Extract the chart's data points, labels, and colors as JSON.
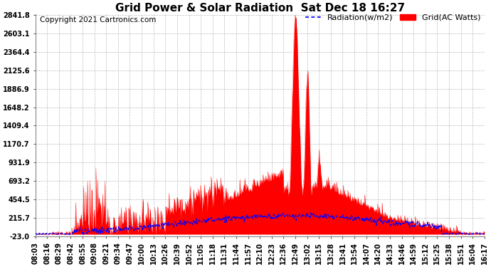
{
  "title": "Grid Power & Solar Radiation  Sat Dec 18 16:27",
  "copyright": "Copyright 2021 Cartronics.com",
  "legend_radiation": "Radiation(w/m2)",
  "legend_grid": "Grid(AC Watts)",
  "legend_radiation_color": "blue",
  "legend_grid_color": "red",
  "ymin": -23.0,
  "ymax": 2841.8,
  "yticks": [
    2841.8,
    2603.1,
    2364.4,
    2125.6,
    1886.9,
    1648.2,
    1409.4,
    1170.7,
    931.9,
    693.2,
    454.5,
    215.7,
    -23.0
  ],
  "xtick_labels": [
    "08:03",
    "08:16",
    "08:29",
    "08:42",
    "08:55",
    "09:08",
    "09:21",
    "09:34",
    "09:47",
    "10:00",
    "10:13",
    "10:26",
    "10:39",
    "10:52",
    "11:05",
    "11:18",
    "11:31",
    "11:44",
    "11:57",
    "12:10",
    "12:23",
    "12:36",
    "12:49",
    "13:02",
    "13:15",
    "13:28",
    "13:41",
    "13:54",
    "14:07",
    "14:20",
    "14:33",
    "14:46",
    "14:59",
    "15:12",
    "15:25",
    "15:38",
    "15:51",
    "16:04",
    "16:17"
  ],
  "bg_color": "#ffffff",
  "grid_color": "#aaaaaa",
  "title_fontsize": 11,
  "copyright_fontsize": 7.5,
  "tick_fontsize": 7,
  "legend_fontsize": 8
}
